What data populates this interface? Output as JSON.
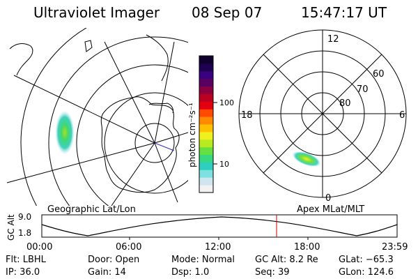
{
  "header": {
    "title": "Ultraviolet Imager",
    "date": "08 Sep 07",
    "time": "15:47:17 UT"
  },
  "geo_panel": {
    "label": "Geographic Lat/Lon"
  },
  "colorbar": {
    "unit_label": "photon cm⁻²s⁻¹",
    "ticks": [
      "100",
      "10"
    ],
    "scale": "log",
    "colors": [
      "#f2f2f2",
      "#cfe6ee",
      "#7fe0e0",
      "#2ecfc0",
      "#36d880",
      "#66e040",
      "#b8ea20",
      "#f0f020",
      "#ffc000",
      "#ff8a00",
      "#ff4a00",
      "#e40010",
      "#bb0020",
      "#8a0040",
      "#5a0060",
      "#3a0080",
      "#1e0050",
      "#100030"
    ]
  },
  "polar_panel": {
    "label": "Apex MLat/MLT",
    "mlt_labels": {
      "top": "12",
      "left": "18",
      "right": "6",
      "bottom": "0"
    },
    "lat_labels": [
      "60",
      "70",
      "80"
    ]
  },
  "altitude_plot": {
    "ylabel": "GC Alt",
    "yticks": [
      "9.0",
      "1.8"
    ],
    "xticks": [
      "00:00",
      "06:00",
      "12:00",
      "18:00",
      "23:59"
    ],
    "current_time_marker": "15:47",
    "marker_color": "#cc0000"
  },
  "footer": {
    "flt": "Flt: LBHL",
    "door": "Door: Open",
    "mode": "Mode: Normal",
    "gc_alt": "GC Alt: 8.2 Re",
    "glat": "GLat: −65.3",
    "ip": "IP: 36.0",
    "gain": "Gain: 14",
    "dsp": "Dsp:    1.0",
    "seq": "Seq: 39",
    "glon": "GLon: 124.6"
  }
}
